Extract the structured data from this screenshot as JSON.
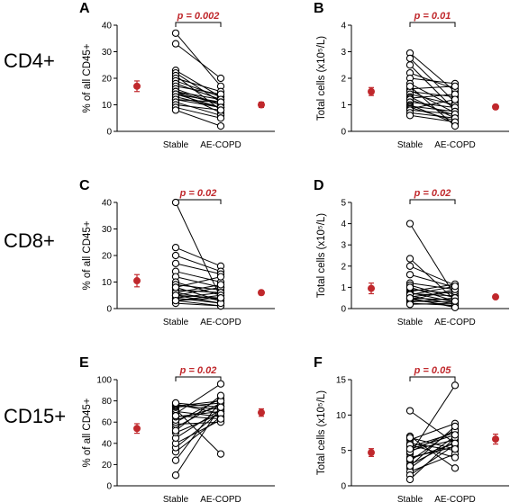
{
  "row_labels": [
    "CD4+",
    "CD8+",
    "CD15+"
  ],
  "colors": {
    "mean_marker": "#c0282c",
    "pvalue": "#c0282c",
    "line": "#000000",
    "point_fill": "#ffffff"
  },
  "chart_data": [
    {
      "type": "scatter",
      "panel": "A",
      "row": 0,
      "col": 0,
      "ylabel": "% of all CD45+",
      "ylim": [
        0,
        40
      ],
      "yticks": [
        0,
        10,
        20,
        30,
        40
      ],
      "categories": [
        "Stable",
        "AE-COPD"
      ],
      "pvalue": "p = 0.002",
      "pairs": [
        [
          37,
          17
        ],
        [
          33,
          20
        ],
        [
          23,
          13
        ],
        [
          22,
          11
        ],
        [
          21,
          8
        ],
        [
          20,
          15
        ],
        [
          19,
          13
        ],
        [
          18,
          12
        ],
        [
          17,
          14
        ],
        [
          16,
          10
        ],
        [
          15,
          10
        ],
        [
          15,
          12
        ],
        [
          15,
          7
        ],
        [
          14,
          9
        ],
        [
          14,
          11
        ],
        [
          13,
          9
        ],
        [
          12,
          11
        ],
        [
          12,
          9
        ],
        [
          11,
          6
        ],
        [
          10,
          8
        ],
        [
          9,
          5
        ],
        [
          8,
          2
        ]
      ],
      "mean_markers": [
        {
          "mean": 17,
          "error": 2
        },
        {
          "mean": 10,
          "error": 1
        }
      ]
    },
    {
      "type": "scatter",
      "panel": "B",
      "row": 0,
      "col": 1,
      "ylabel": "Total cells (x10⁵/L)",
      "ylim": [
        0,
        4
      ],
      "yticks": [
        0,
        1,
        2,
        3,
        4
      ],
      "categories": [
        "Stable",
        "AE-COPD"
      ],
      "pvalue": "p = 0.01",
      "pairs": [
        [
          2.95,
          1.5
        ],
        [
          2.75,
          1.1
        ],
        [
          2.5,
          0.8
        ],
        [
          2.2,
          1.6
        ],
        [
          2.0,
          1.8
        ],
        [
          1.8,
          0.9
        ],
        [
          1.6,
          1.7
        ],
        [
          1.55,
          0.7
        ],
        [
          1.5,
          1.3
        ],
        [
          1.4,
          1.0
        ],
        [
          1.3,
          0.5
        ],
        [
          1.25,
          1.4
        ],
        [
          1.2,
          0.6
        ],
        [
          1.1,
          0.9
        ],
        [
          1.0,
          0.3
        ],
        [
          0.95,
          0.75
        ],
        [
          0.9,
          0.4
        ],
        [
          0.85,
          1.2
        ],
        [
          0.8,
          0.65
        ],
        [
          0.7,
          0.5
        ],
        [
          0.6,
          0.35
        ],
        [
          1.7,
          0.2
        ]
      ],
      "mean_markers": [
        {
          "mean": 1.5,
          "error": 0.15
        },
        {
          "mean": 0.92,
          "error": 0.08
        }
      ]
    },
    {
      "type": "scatter",
      "panel": "C",
      "row": 1,
      "col": 0,
      "ylabel": "% of all CD45+",
      "ylim": [
        0,
        40
      ],
      "yticks": [
        0,
        10,
        20,
        30,
        40
      ],
      "categories": [
        "Stable",
        "AE-COPD"
      ],
      "pvalue": "p = 0.02",
      "pairs": [
        [
          40,
          4
        ],
        [
          23,
          16
        ],
        [
          20,
          14
        ],
        [
          17,
          13
        ],
        [
          14,
          10
        ],
        [
          12,
          8
        ],
        [
          10,
          5
        ],
        [
          9,
          7
        ],
        [
          8,
          12
        ],
        [
          7,
          6
        ],
        [
          6,
          3
        ],
        [
          5,
          4
        ],
        [
          5,
          8
        ],
        [
          4,
          2
        ],
        [
          4,
          6
        ],
        [
          3,
          1
        ],
        [
          3,
          5
        ],
        [
          2,
          1
        ],
        [
          6,
          9
        ],
        [
          8,
          3
        ],
        [
          5,
          2
        ],
        [
          3,
          4
        ]
      ],
      "mean_markers": [
        {
          "mean": 10.5,
          "error": 2.3
        },
        {
          "mean": 6,
          "error": 0.8
        }
      ]
    },
    {
      "type": "scatter",
      "panel": "D",
      "row": 1,
      "col": 1,
      "ylabel": "Total cells (x10⁵/L)",
      "ylim": [
        0,
        5
      ],
      "yticks": [
        0,
        1,
        2,
        3,
        4,
        5
      ],
      "categories": [
        "Stable",
        "AE-COPD"
      ],
      "pvalue": "p = 0.02",
      "pairs": [
        [
          4.0,
          0.6
        ],
        [
          2.35,
          0.4
        ],
        [
          2.0,
          1.1
        ],
        [
          1.6,
          1.0
        ],
        [
          1.2,
          0.9
        ],
        [
          1.1,
          0.5
        ],
        [
          0.9,
          0.7
        ],
        [
          0.8,
          1.15
        ],
        [
          0.75,
          0.3
        ],
        [
          0.7,
          0.6
        ],
        [
          0.6,
          0.2
        ],
        [
          0.55,
          0.8
        ],
        [
          0.5,
          0.4
        ],
        [
          0.45,
          0.1
        ],
        [
          0.4,
          0.9
        ],
        [
          0.35,
          0.3
        ],
        [
          0.3,
          0.5
        ],
        [
          0.25,
          0.15
        ],
        [
          0.2,
          0.25
        ],
        [
          1.0,
          0.35
        ],
        [
          0.65,
          1.05
        ],
        [
          0.5,
          0.05
        ]
      ],
      "mean_markers": [
        {
          "mean": 0.95,
          "error": 0.25
        },
        {
          "mean": 0.55,
          "error": 0.06
        }
      ]
    },
    {
      "type": "scatter",
      "panel": "E",
      "row": 2,
      "col": 0,
      "ylabel": "% of all CD45+",
      "ylim": [
        0,
        100
      ],
      "yticks": [
        0,
        20,
        40,
        60,
        80,
        100
      ],
      "categories": [
        "Stable",
        "AE-COPD"
      ],
      "pvalue": "p = 0.02",
      "pairs": [
        [
          10,
          75
        ],
        [
          24,
          80
        ],
        [
          32,
          65
        ],
        [
          36,
          70
        ],
        [
          40,
          62
        ],
        [
          45,
          72
        ],
        [
          50,
          68
        ],
        [
          55,
          78
        ],
        [
          58,
          60
        ],
        [
          60,
          82
        ],
        [
          62,
          75
        ],
        [
          65,
          70
        ],
        [
          68,
          96
        ],
        [
          70,
          65
        ],
        [
          72,
          30
        ],
        [
          74,
          78
        ],
        [
          75,
          80
        ],
        [
          76,
          72
        ],
        [
          77,
          68
        ],
        [
          78,
          74
        ],
        [
          52,
          85
        ],
        [
          66,
          63
        ]
      ],
      "mean_markers": [
        {
          "mean": 54,
          "error": 4.5
        },
        {
          "mean": 69,
          "error": 3.5
        }
      ]
    },
    {
      "type": "scatter",
      "panel": "F",
      "row": 2,
      "col": 1,
      "ylabel": "Total cells (x10⁵/L)",
      "ylim": [
        0,
        15
      ],
      "yticks": [
        0,
        5,
        10,
        15
      ],
      "categories": [
        "Stable",
        "AE-COPD"
      ],
      "pvalue": "p = 0.05",
      "pairs": [
        [
          10.6,
          6.0
        ],
        [
          7.0,
          2.5
        ],
        [
          6.5,
          8.8
        ],
        [
          6.0,
          5.0
        ],
        [
          5.5,
          7.5
        ],
        [
          5.0,
          6.5
        ],
        [
          4.5,
          14.2
        ],
        [
          4.0,
          5.5
        ],
        [
          3.5,
          8.0
        ],
        [
          3.0,
          6.2
        ],
        [
          2.5,
          7.0
        ],
        [
          2.0,
          4.5
        ],
        [
          1.5,
          5.8
        ],
        [
          0.9,
          6.8
        ],
        [
          5.8,
          4.0
        ],
        [
          4.8,
          7.8
        ],
        [
          3.8,
          6.0
        ],
        [
          6.8,
          5.2
        ],
        [
          2.8,
          8.4
        ],
        [
          5.2,
          7.2
        ]
      ],
      "mean_markers": [
        {
          "mean": 4.7,
          "error": 0.55
        },
        {
          "mean": 6.6,
          "error": 0.7
        }
      ]
    }
  ]
}
